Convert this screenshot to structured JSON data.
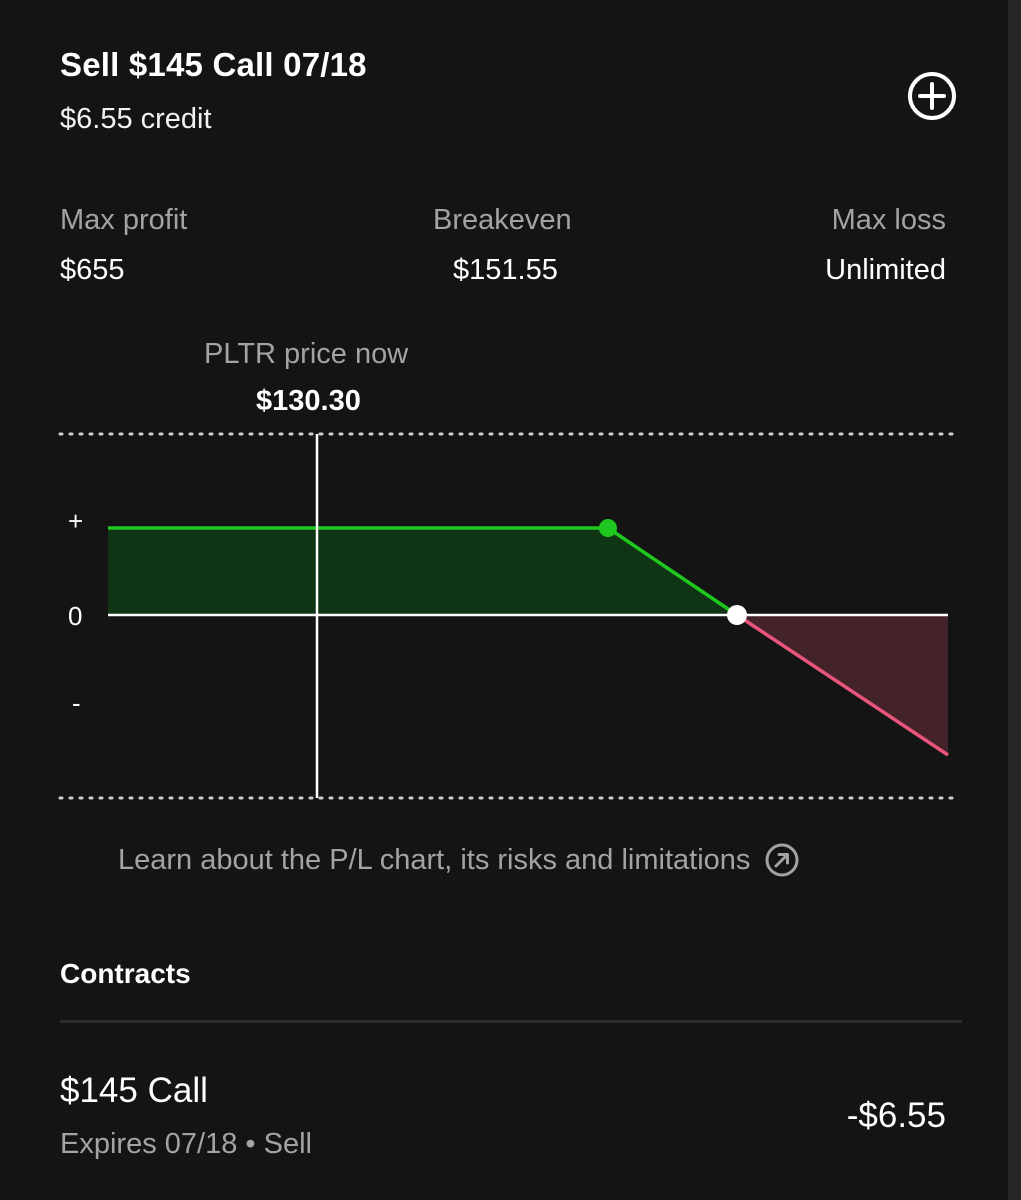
{
  "header": {
    "title": "Sell $145 Call 07/18",
    "credit": "$6.55 credit",
    "add_icon": "plus-circle-icon"
  },
  "stats": {
    "max_profit_label": "Max profit",
    "max_profit_value": "$655",
    "breakeven_label": "Breakeven",
    "breakeven_value": "$151.55",
    "max_loss_label": "Max loss",
    "max_loss_value": "Unlimited"
  },
  "price_now": {
    "label": "PLTR price now",
    "value": "$130.30"
  },
  "chart_data": {
    "type": "line",
    "y_tick_labels": [
      "+",
      "0",
      "-"
    ],
    "current_price": 130.3,
    "strike": 145,
    "breakeven": 151.55,
    "max_profit": 655,
    "colors": {
      "profit_line": "#1ec81e",
      "profit_fill": "#103514",
      "loss_line": "#e8557a",
      "loss_fill": "#43222a",
      "zero_line": "#ffffff",
      "grid": "#cfcfcf"
    }
  },
  "learn_link": {
    "text": "Learn about the P/L chart, its risks and limitations",
    "icon": "external-arrow-icon"
  },
  "contracts": {
    "title": "Contracts",
    "items": [
      {
        "name": "$145 Call",
        "details": "Expires 07/18 • Sell",
        "price": "-$6.55"
      }
    ]
  },
  "colors": {
    "background": "#141414",
    "text_primary": "#ffffff",
    "text_secondary": "#a3a3a3"
  }
}
